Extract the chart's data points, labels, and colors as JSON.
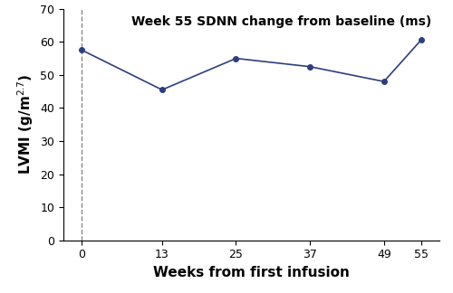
{
  "x": [
    0,
    13,
    25,
    37,
    49,
    55
  ],
  "y": [
    57.5,
    45.5,
    55.0,
    52.5,
    48.0,
    60.5
  ],
  "xlabel": "Weeks from first infusion",
  "title": "Week 55 SDNN change from baseline (ms)",
  "xticks": [
    0,
    13,
    25,
    37,
    49,
    55
  ],
  "yticks": [
    0,
    10,
    20,
    30,
    40,
    50,
    60,
    70
  ],
  "ylim": [
    0,
    70
  ],
  "xlim": [
    -3,
    58
  ],
  "line_color": "#2e3f7f",
  "marker": "o",
  "marker_size": 4,
  "line_width": 1.2,
  "dashed_x": 0,
  "dashed_color": "#888888"
}
